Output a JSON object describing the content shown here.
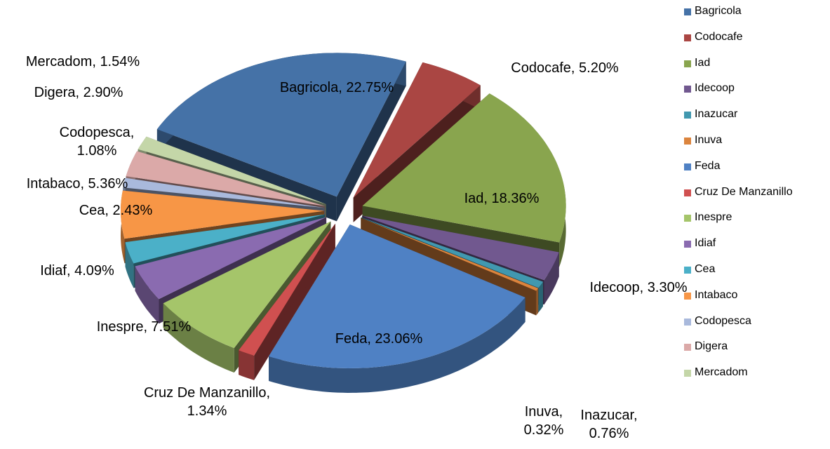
{
  "chart_data": {
    "type": "pie",
    "categories": [
      "Bagricola",
      "Codocafe",
      "Iad",
      "Idecoop",
      "Inazucar",
      "Inuva",
      "Feda",
      "Cruz De Manzanillo",
      "Inespre",
      "Idiaf",
      "Cea",
      "Intabaco",
      "Codopesca",
      "Digera",
      "Mercadom"
    ],
    "values": [
      22.75,
      5.2,
      18.36,
      3.3,
      0.76,
      0.32,
      23.06,
      1.34,
      7.51,
      4.09,
      2.43,
      5.36,
      1.08,
      2.9,
      1.54
    ],
    "value_labels": [
      "Bagricola, 22.75%",
      "Codocafe, 5.20%",
      "Iad, 18.36%",
      "Idecoop, 3.30%",
      "Inazucar, 0.76%",
      "Inuva, 0.32%",
      "Feda, 23.06%",
      "Cruz De Manzanillo, 1.34%",
      "Inespre, 7.51%",
      "Idiaf, 4.09%",
      "Cea, 2.43%",
      "Intabaco, 5.36%",
      "Codopesca, 1.08%",
      "Digera, 2.90%",
      "Mercadom, 1.54%"
    ],
    "colors": [
      "#4572a7",
      "#aa4643",
      "#89a54e",
      "#71588f",
      "#4198af",
      "#db843d",
      "#4f81c4",
      "#d05050",
      "#a5c56a",
      "#8a6bb0",
      "#4bb0c8",
      "#f79646",
      "#a9b9dc",
      "#dba9a8",
      "#c4d6a8"
    ],
    "legend": "right"
  }
}
